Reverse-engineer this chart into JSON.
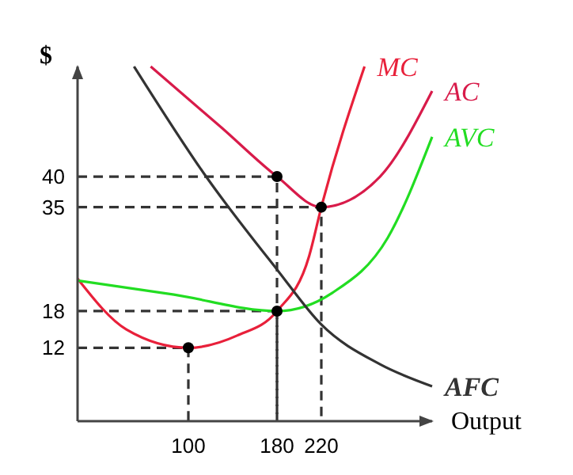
{
  "chart_data": {
    "type": "line",
    "xlabel": "Output",
    "ylabel": "$",
    "xlim": [
      0,
      320
    ],
    "ylim": [
      0,
      58
    ],
    "xticks": [
      100,
      180,
      220
    ],
    "yticks": [
      12,
      18,
      35,
      40
    ],
    "grid": false,
    "marker": "none",
    "series": [
      {
        "color": "#333333",
        "line_style": "dashed",
        "x": [
          0,
          100,
          100
        ],
        "values": [
          12,
          12,
          0
        ]
      },
      {
        "color": "#333333",
        "line_style": "dashed",
        "x": [
          0,
          180,
          180
        ],
        "values": [
          18,
          18,
          0
        ]
      },
      {
        "color": "#333333",
        "line_style": "dashed",
        "x": [
          0,
          180,
          180
        ],
        "values": [
          40,
          40,
          0
        ]
      },
      {
        "color": "#333333",
        "line_style": "dashed",
        "x": [
          0,
          220,
          220
        ],
        "values": [
          35,
          35,
          0
        ]
      },
      {
        "name": "MC",
        "color": "#e8203a",
        "x": [
          0,
          44,
          100,
          144,
          180,
          209,
          220,
          259
        ],
        "values": [
          23.3,
          15,
          12,
          14,
          18,
          27,
          35,
          58
        ]
      },
      {
        "name": "AC",
        "color": "#d81b4a",
        "x": [
          66,
          130,
          180,
          220,
          273,
          320
        ],
        "values": [
          58,
          48,
          40,
          35,
          40,
          54
        ]
      },
      {
        "name": "AVC",
        "color": "#22dd22",
        "x": [
          0,
          87,
          180,
          230,
          280,
          320
        ],
        "values": [
          23,
          20.7,
          18,
          21,
          30,
          46.5
        ]
      },
      {
        "name": "AFC",
        "color": "#333333",
        "x": [
          51,
          116,
          180,
          220,
          273,
          320
        ],
        "values": [
          58,
          40,
          24.8,
          15.8,
          9.3,
          5.7
        ]
      },
      {
        "type": "scatter",
        "marker": "circle",
        "color": "#000000",
        "x": [
          100,
          180,
          180,
          220
        ],
        "values": [
          12,
          18,
          40,
          35
        ]
      }
    ]
  }
}
